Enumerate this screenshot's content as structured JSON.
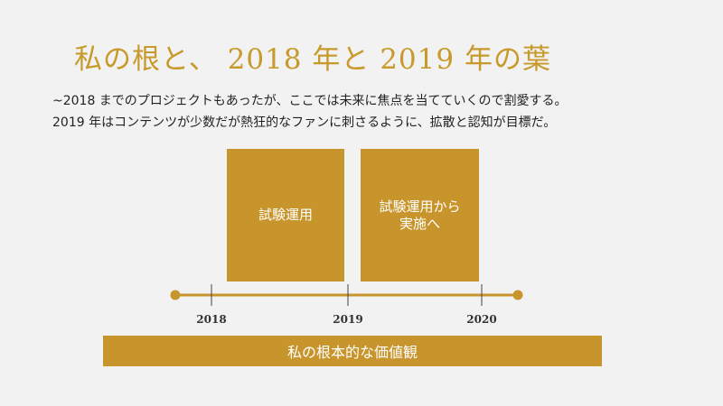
{
  "slide": {
    "title": "私の根と、 2018 年と 2019 年の葉",
    "description": [
      "~2018 までのプロジェクトもあったが、ここでは未来に焦点を当てていくので割愛する。",
      "2019 年はコンテンツが少数だが熱狂的なファンに刺さるように、拡散と認知が目標だ。"
    ],
    "boxes": [
      {
        "label": "試験運用"
      },
      {
        "label": "試験運用から\n実施へ"
      }
    ],
    "timeline": {
      "years": [
        "2018",
        "2019",
        "2020"
      ]
    },
    "foundation": "私の根本的な価値観",
    "colors": {
      "accent": "#c7952b",
      "title": "#c79a2b",
      "text": "#222222",
      "background": "#f2f2f2"
    }
  }
}
